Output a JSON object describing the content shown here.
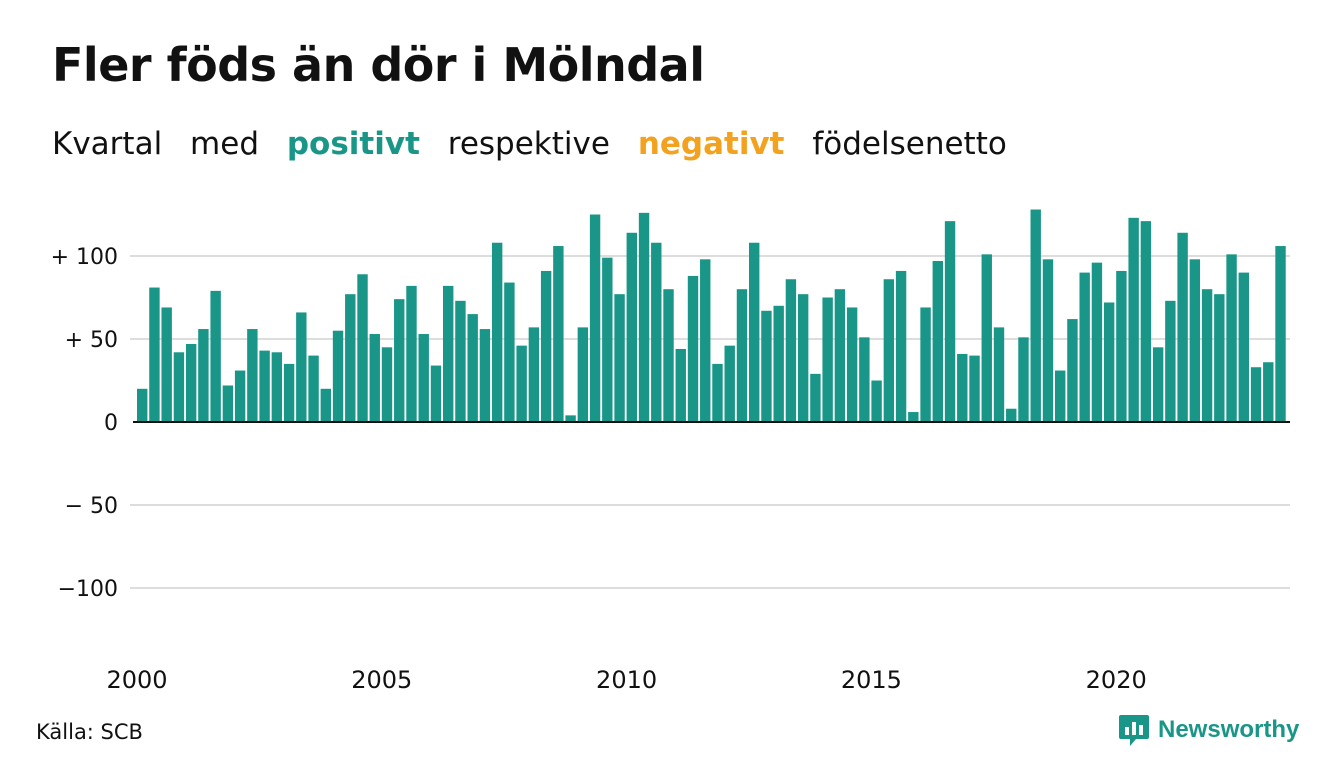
{
  "title": "Fler föds än dör i Mölndal",
  "subtitle": {
    "w1": "Kvartal",
    "w2": "med",
    "positive": "positivt",
    "w3": "respektive",
    "negative": "negativt",
    "w4": "födelsenetto"
  },
  "source": "Källa: SCB",
  "brand": "Newsworthy",
  "colors": {
    "positive": "#1a9688",
    "negative": "#f2a21e",
    "grid": "#dddddd",
    "axis": "#111111"
  },
  "chart_data": {
    "type": "bar",
    "x_start": "2000 Q1",
    "x_ticks": [
      "2000",
      "2005",
      "2010",
      "2015",
      "2020"
    ],
    "y_ticks": [
      {
        "value": 100,
        "label": "+ 100"
      },
      {
        "value": 50,
        "label": "+  50"
      },
      {
        "value": 0,
        "label": "0"
      },
      {
        "value": -50,
        "label": "− 50"
      },
      {
        "value": -100,
        "label": "−100"
      }
    ],
    "ylim": [
      -130,
      130
    ],
    "grid": true,
    "values": [
      20,
      81,
      69,
      42,
      47,
      56,
      79,
      22,
      31,
      56,
      43,
      42,
      35,
      66,
      40,
      20,
      55,
      77,
      89,
      53,
      45,
      74,
      82,
      53,
      34,
      82,
      73,
      65,
      56,
      108,
      84,
      46,
      57,
      91,
      106,
      4,
      57,
      125,
      99,
      77,
      114,
      126,
      108,
      80,
      44,
      88,
      98,
      35,
      46,
      80,
      108,
      67,
      70,
      86,
      77,
      29,
      75,
      80,
      69,
      51,
      25,
      86,
      91,
      6,
      69,
      97,
      121,
      41,
      40,
      101,
      57,
      8,
      51,
      128,
      98,
      31,
      62,
      90,
      96,
      72,
      91,
      123,
      121,
      45,
      73,
      114,
      98,
      80,
      77,
      101,
      90,
      33,
      36,
      106
    ]
  }
}
